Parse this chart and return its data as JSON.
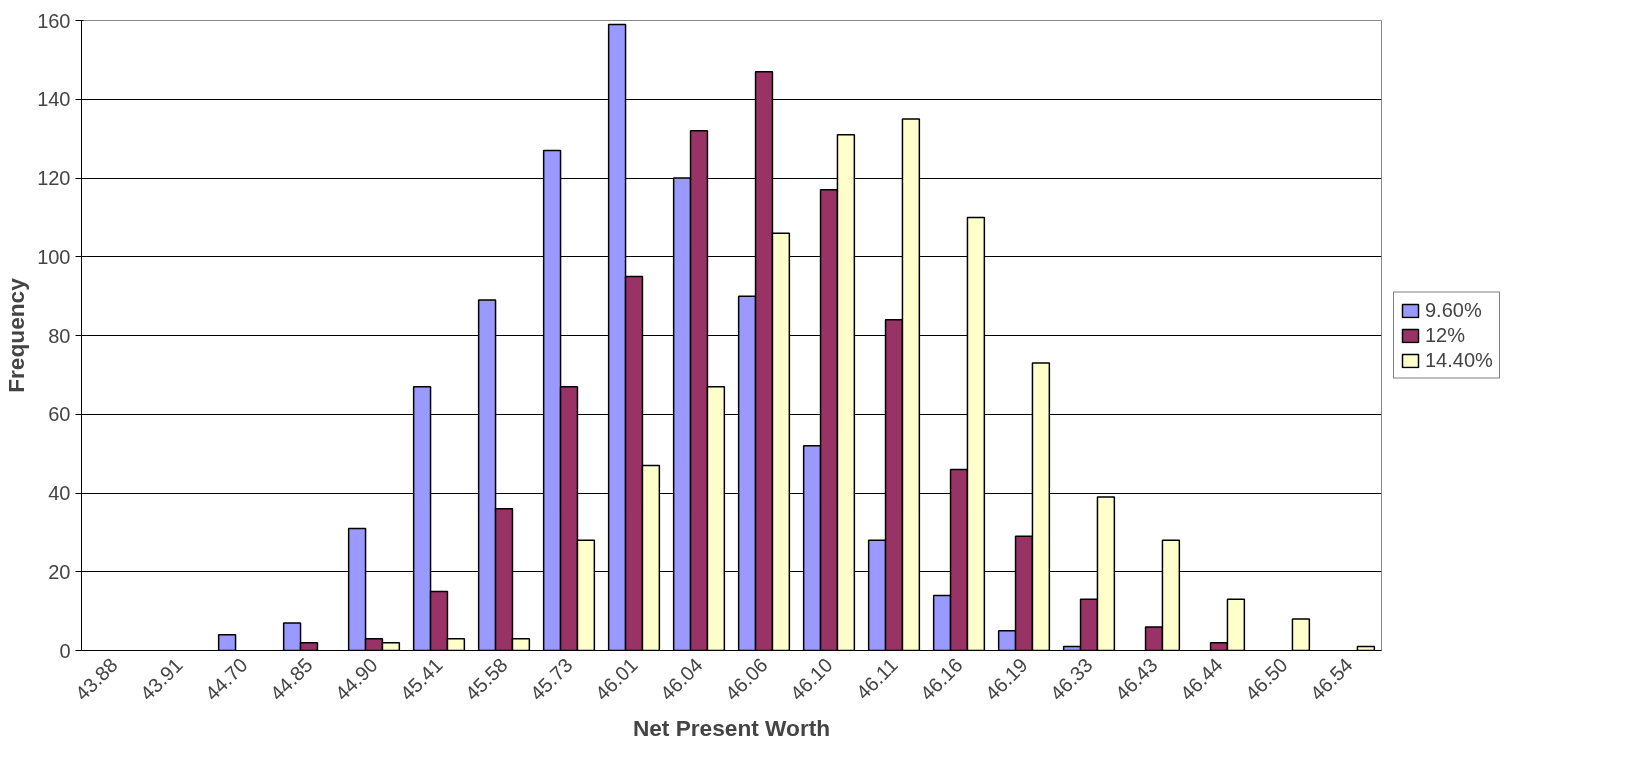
{
  "chart_data": {
    "type": "bar",
    "xlabel": "Net Present Worth",
    "ylabel": "Frequency",
    "categories": [
      "43.88",
      "43.91",
      "44.70",
      "44.85",
      "44.90",
      "45.41",
      "45.58",
      "45.73",
      "46.01",
      "46.04",
      "46.06",
      "46.10",
      "46.11",
      "46.16",
      "46.19",
      "46.33",
      "46.43",
      "46.44",
      "46.50",
      "46.54"
    ],
    "series": [
      {
        "name": "9.60%",
        "color": "#9999ff",
        "values": [
          null,
          null,
          4,
          7,
          31,
          67,
          89,
          127,
          159,
          120,
          90,
          52,
          28,
          14,
          5,
          1,
          null,
          null,
          null,
          null
        ]
      },
      {
        "name": "12%",
        "color": "#993366",
        "values": [
          null,
          null,
          null,
          2,
          3,
          15,
          36,
          67,
          95,
          132,
          147,
          117,
          84,
          46,
          29,
          13,
          6,
          2,
          null,
          null
        ]
      },
      {
        "name": "14.40%",
        "color": "#ffffcc",
        "values": [
          null,
          null,
          null,
          null,
          2,
          3,
          3,
          28,
          47,
          67,
          106,
          131,
          135,
          110,
          73,
          39,
          28,
          13,
          8,
          1
        ]
      }
    ],
    "ylim": [
      0,
      160
    ],
    "yticks": [
      0,
      20,
      40,
      60,
      80,
      100,
      120,
      140,
      160
    ],
    "grid": "y",
    "legend": "right"
  }
}
